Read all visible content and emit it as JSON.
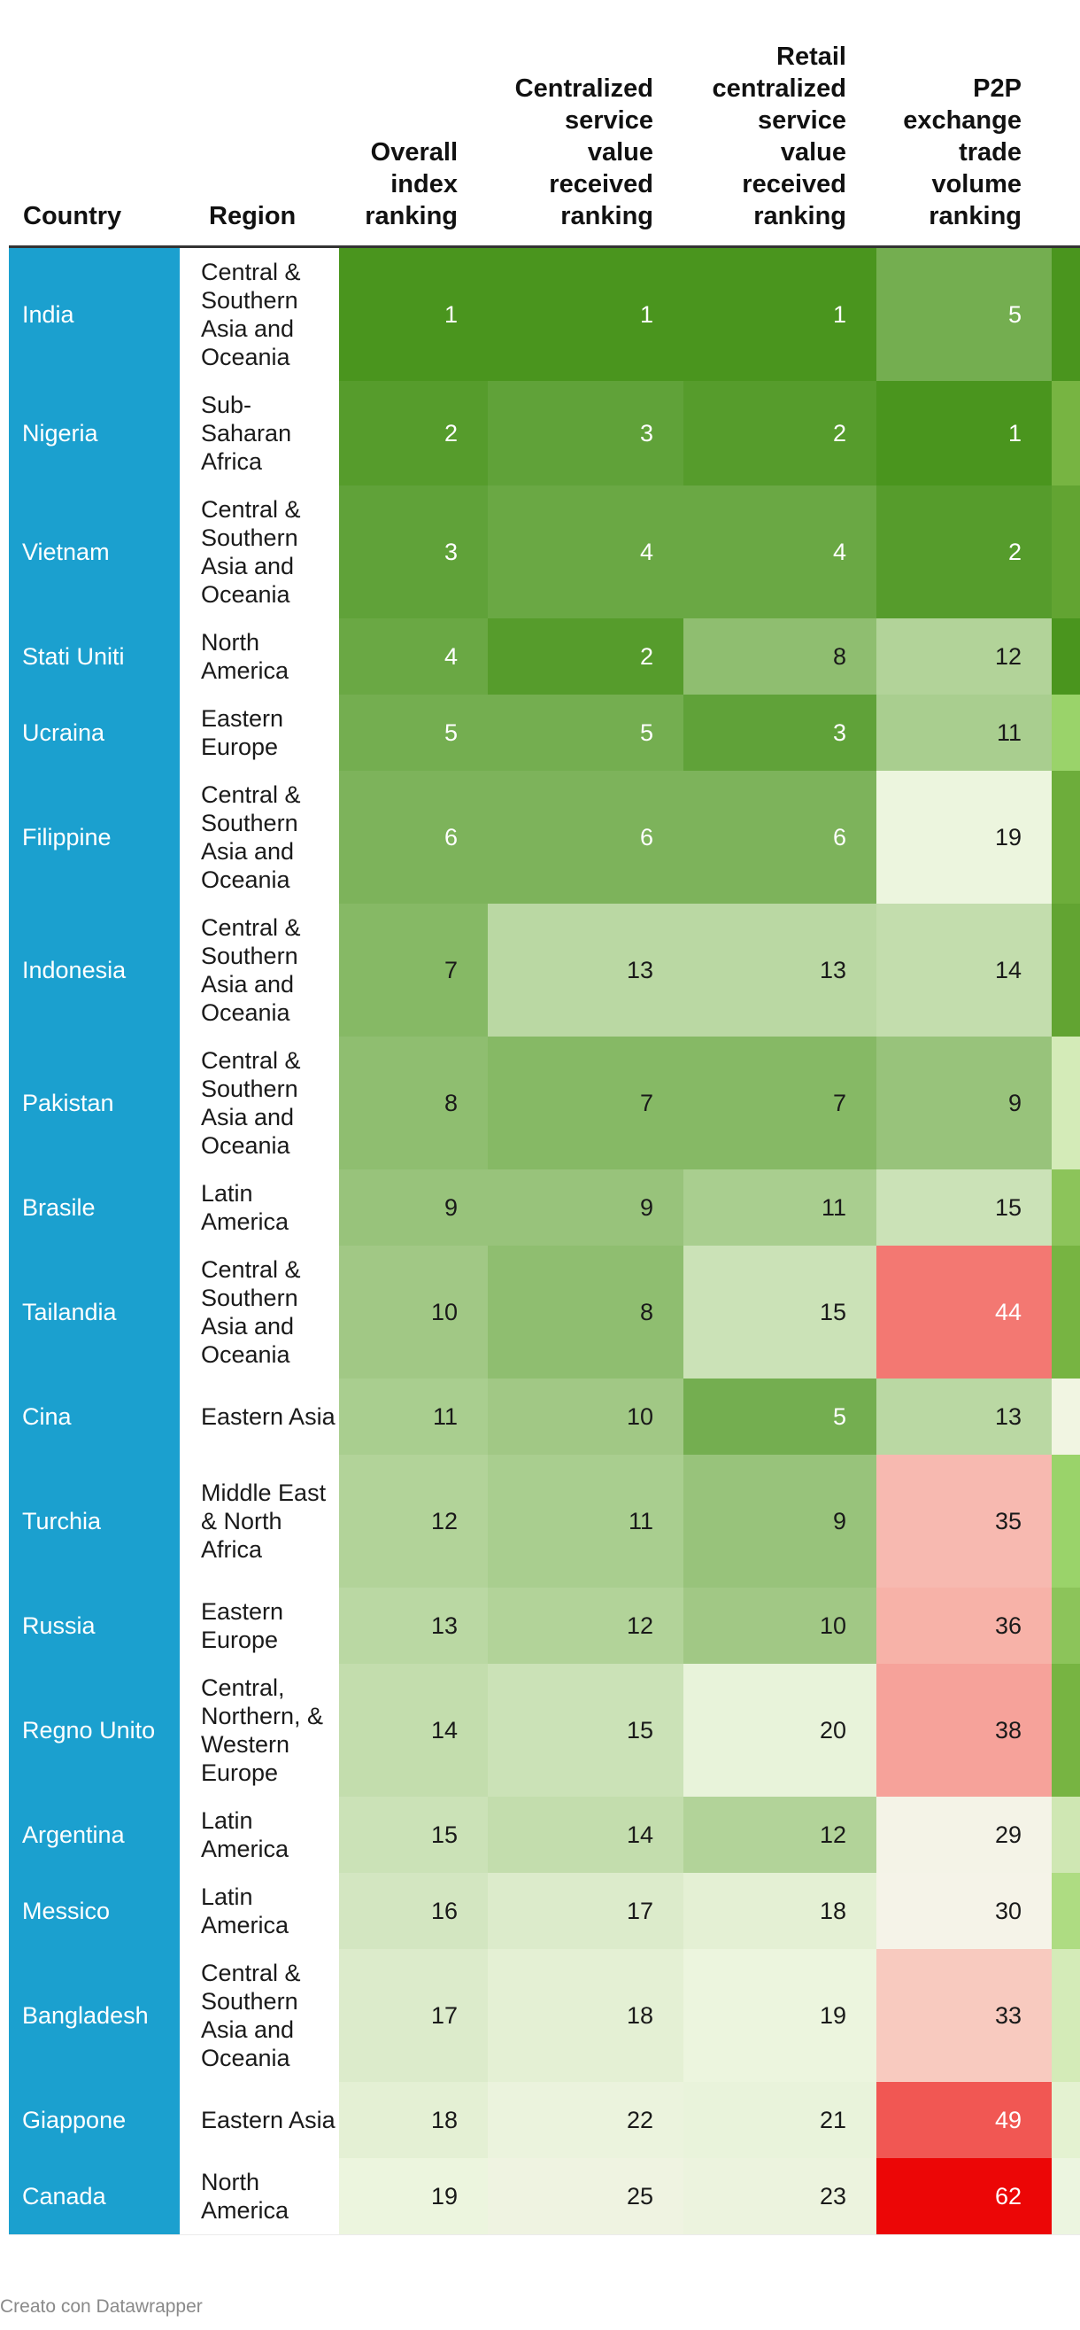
{
  "chart_data": {
    "type": "table",
    "columns": {
      "country": "Country",
      "region": "Region",
      "overall": "Overall index ranking",
      "centralized": "Centralized service value received ranking",
      "retail": "Retail centralized service value received ranking",
      "p2p": "P2P exchange trade volume ranking"
    },
    "rows": [
      {
        "country": "India",
        "region": "Central & Southern Asia and Oceania",
        "overall": 1,
        "centralized": 1,
        "retail": 1,
        "p2p": 5,
        "extra_color": "#4a951e"
      },
      {
        "country": "Nigeria",
        "region": "Sub-Saharan Africa",
        "overall": 2,
        "centralized": 3,
        "retail": 2,
        "p2p": 1,
        "extra_color": "#77b442"
      },
      {
        "country": "Vietnam",
        "region": "Central & Southern Asia and Oceania",
        "overall": 3,
        "centralized": 4,
        "retail": 4,
        "p2p": 2,
        "extra_color": "#62a432"
      },
      {
        "country": "Stati Uniti",
        "region": "North America",
        "overall": 4,
        "centralized": 2,
        "retail": 8,
        "p2p": 12,
        "extra_color": "#4a951e"
      },
      {
        "country": "Ucraina",
        "region": "Eastern Europe",
        "overall": 5,
        "centralized": 5,
        "retail": 3,
        "p2p": 11,
        "extra_color": "#9ad36a"
      },
      {
        "country": "Filippine",
        "region": "Central & Southern Asia and Oceania",
        "overall": 6,
        "centralized": 6,
        "retail": 6,
        "p2p": 19,
        "extra_color": "#6dad3b"
      },
      {
        "country": "Indonesia",
        "region": "Central & Southern Asia and Oceania",
        "overall": 7,
        "centralized": 13,
        "retail": 13,
        "p2p": 14,
        "extra_color": "#62a432"
      },
      {
        "country": "Pakistan",
        "region": "Central & Southern Asia and Oceania",
        "overall": 8,
        "centralized": 7,
        "retail": 7,
        "p2p": 9,
        "extra_color": "#d4ebb8"
      },
      {
        "country": "Brasile",
        "region": "Latin America",
        "overall": 9,
        "centralized": 9,
        "retail": 11,
        "p2p": 15,
        "extra_color": "#8cc45a"
      },
      {
        "country": "Tailandia",
        "region": "Central & Southern Asia and Oceania",
        "overall": 10,
        "centralized": 8,
        "retail": 15,
        "p2p": 44,
        "extra_color": "#77b442"
      },
      {
        "country": "Cina",
        "region": "Eastern Asia",
        "overall": 11,
        "centralized": 10,
        "retail": 5,
        "p2p": 13,
        "extra_color": "#f1f5e2"
      },
      {
        "country": "Turchia",
        "region": "Middle East & North Africa",
        "overall": 12,
        "centralized": 11,
        "retail": 9,
        "p2p": 35,
        "extra_color": "#9ad36a"
      },
      {
        "country": "Russia",
        "region": "Eastern Europe",
        "overall": 13,
        "centralized": 12,
        "retail": 10,
        "p2p": 36,
        "extra_color": "#8cc45a"
      },
      {
        "country": "Regno Unito",
        "region": "Central, Northern, & Western Europe",
        "overall": 14,
        "centralized": 15,
        "retail": 20,
        "p2p": 38,
        "extra_color": "#77b442"
      },
      {
        "country": "Argentina",
        "region": "Latin America",
        "overall": 15,
        "centralized": 14,
        "retail": 12,
        "p2p": 29,
        "extra_color": "#cfe7b3"
      },
      {
        "country": "Messico",
        "region": "Latin America",
        "overall": 16,
        "centralized": 17,
        "retail": 18,
        "p2p": 30,
        "extra_color": "#aedc82"
      },
      {
        "country": "Bangladesh",
        "region": "Central & Southern Asia and Oceania",
        "overall": 17,
        "centralized": 18,
        "retail": 19,
        "p2p": 33,
        "extra_color": "#d4ebb8"
      },
      {
        "country": "Giappone",
        "region": "Eastern Asia",
        "overall": 18,
        "centralized": 22,
        "retail": 21,
        "p2p": 49,
        "extra_color": "#e4f2d1"
      },
      {
        "country": "Canada",
        "region": "North America",
        "overall": 19,
        "centralized": 25,
        "retail": 23,
        "p2p": 62,
        "extra_color": "#ecf5e0"
      }
    ]
  },
  "footer": "Creato con Datawrapper"
}
